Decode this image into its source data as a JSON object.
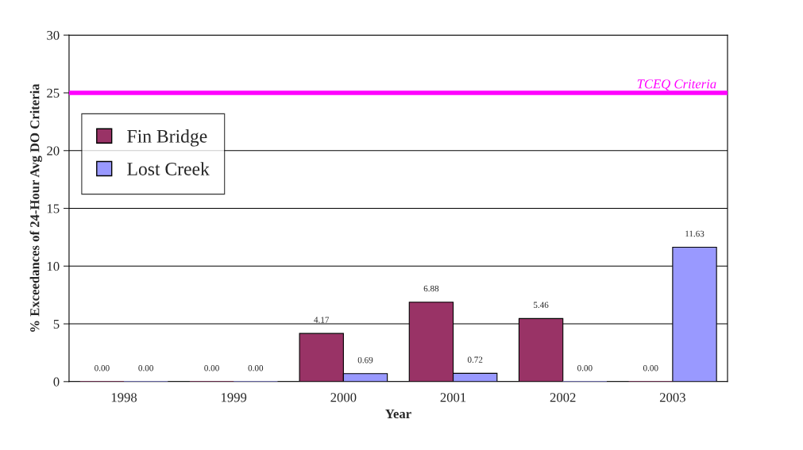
{
  "chart_data": {
    "type": "bar",
    "xlabel": "Year",
    "ylabel": "% Exceedances of 24-Hour Avg DO Criteria",
    "categories": [
      "1998",
      "1999",
      "2000",
      "2001",
      "2002",
      "2003"
    ],
    "series": [
      {
        "name": "Fin Bridge",
        "color": "#993366",
        "values": [
          0,
          0,
          4.17,
          6.88,
          5.46,
          0
        ],
        "value_labels": [
          "0.00",
          "0.00",
          "4.17",
          "6.88",
          "5.46",
          "0.00"
        ]
      },
      {
        "name": "Lost Creek",
        "color": "#9999ff",
        "values": [
          0,
          0,
          0.69,
          0.72,
          0,
          11.63
        ],
        "value_labels": [
          "0.00",
          "0.00",
          "0.69",
          "0.72",
          "0.00",
          "11.63"
        ]
      }
    ],
    "ylim": [
      0,
      30
    ],
    "yticks": [
      0,
      5,
      10,
      15,
      20,
      25,
      30
    ],
    "grid": "y",
    "legend": "top left",
    "ref_lines": [
      {
        "axis": "y",
        "value": 25,
        "label": "TCEQ Criteria",
        "color": "#ff00ff"
      }
    ]
  }
}
